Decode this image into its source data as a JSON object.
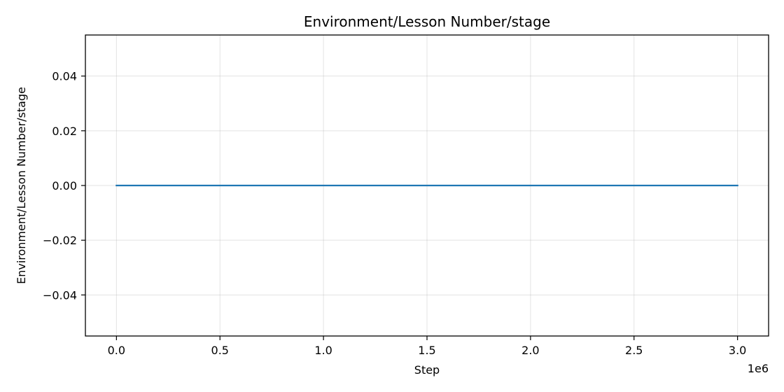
{
  "chart_data": {
    "type": "line",
    "title": "Environment/Lesson Number/stage",
    "xlabel": "Step",
    "ylabel": "Environment/Lesson Number/stage",
    "x_offset_label": "1e6",
    "xlim": [
      -0.15,
      3.15
    ],
    "ylim": [
      -0.055,
      0.055
    ],
    "x_ticks": [
      0.0,
      0.5,
      1.0,
      1.5,
      2.0,
      2.5,
      3.0
    ],
    "x_tick_labels": [
      "0.0",
      "0.5",
      "1.0",
      "1.5",
      "2.0",
      "2.5",
      "3.0"
    ],
    "y_ticks": [
      0.04,
      0.02,
      0.0,
      -0.02,
      -0.04
    ],
    "y_tick_labels": [
      "0.04",
      "0.02",
      "0.00",
      "−0.02",
      "−0.04"
    ],
    "grid": true,
    "legend": "none",
    "series": [
      {
        "color": "#1f77b4",
        "x": [
          0.0,
          0.5,
          1.0,
          1.5,
          2.0,
          2.5,
          3.0
        ],
        "y": [
          0,
          0,
          0,
          0,
          0,
          0,
          0
        ]
      }
    ]
  }
}
